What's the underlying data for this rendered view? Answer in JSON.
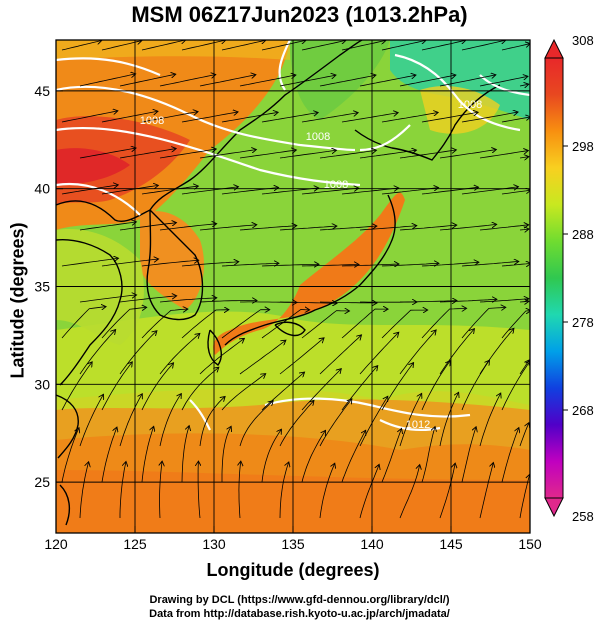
{
  "title": "MSM 06Z17Jun2023 (1013.2hPa)",
  "x_axis": {
    "label": "Longitude (degrees)",
    "ticks": [
      "120",
      "125",
      "130",
      "135",
      "140",
      "145",
      "150"
    ],
    "range": [
      120,
      150
    ]
  },
  "y_axis": {
    "label": "Latitude  (degrees)",
    "ticks": [
      "25",
      "30",
      "35",
      "40",
      "45"
    ],
    "range": [
      22.4,
      47.6
    ]
  },
  "colorbar": {
    "ticks": [
      "308",
      "298",
      "288",
      "278",
      "268",
      "258"
    ],
    "range": [
      258,
      308
    ],
    "colors": [
      "#e0288c",
      "#c000c0",
      "#5000c8",
      "#1040e0",
      "#00a0e8",
      "#20d8b0",
      "#30c850",
      "#70dc30",
      "#c8e820",
      "#f8d020",
      "#f89010",
      "#e84820",
      "#e8282a"
    ]
  },
  "isobars": [
    {
      "label": "1008"
    },
    {
      "label": "1008"
    },
    {
      "label": "1008"
    },
    {
      "label": "1008"
    },
    {
      "label": "1012"
    }
  ],
  "credits": [
    "Drawing by DCL (https://www.gfd-dennou.org/library/dcl/)",
    "Data from http://database.rish.kyoto-u.ac.jp/arch/jmadata/"
  ]
}
